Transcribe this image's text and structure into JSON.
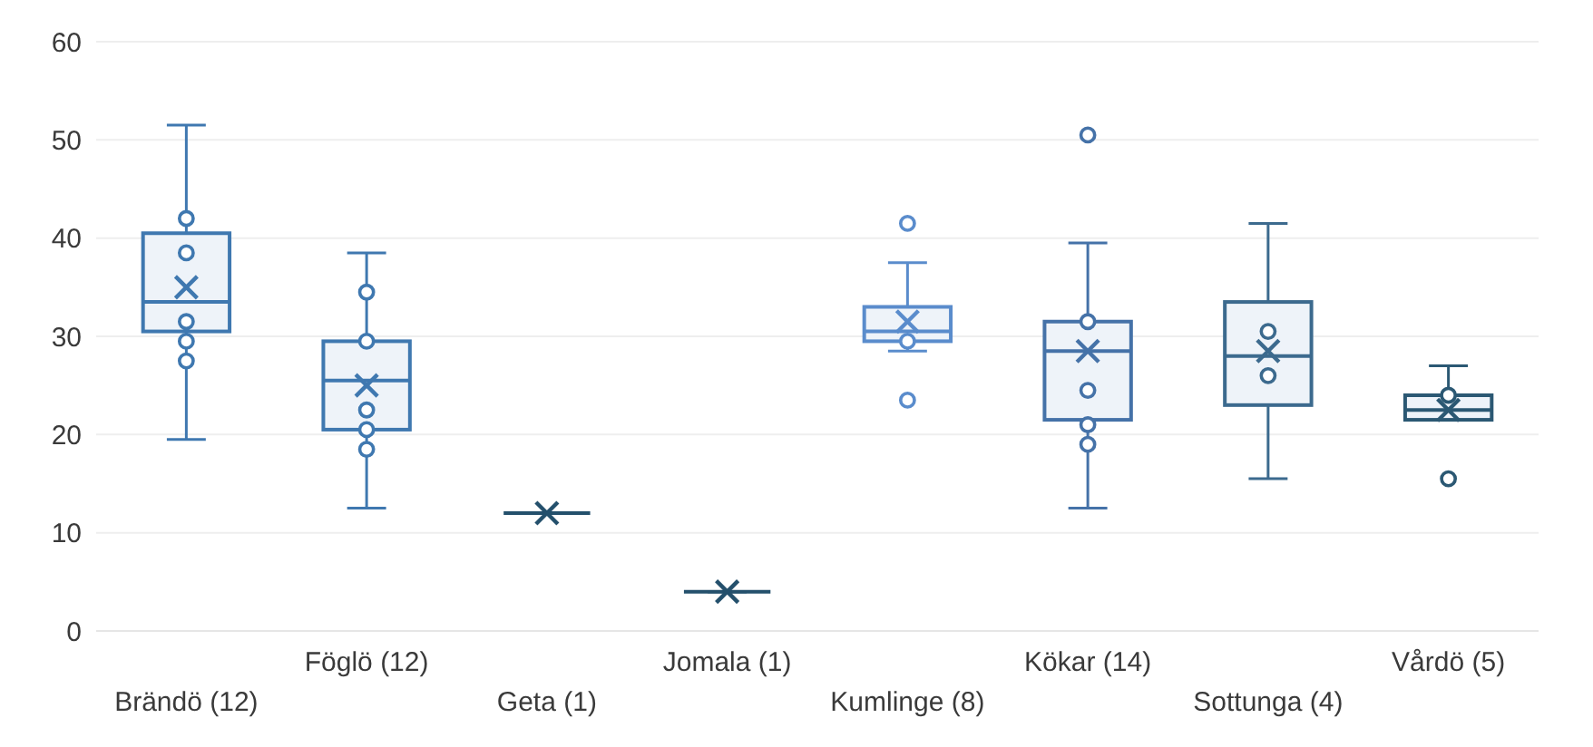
{
  "chart_data": {
    "type": "box",
    "categories": [
      "Brändö (12)",
      "Föglö (12)",
      "Geta (1)",
      "Jomala (1)",
      "Kumlinge (8)",
      "Kökar (14)",
      "Sottunga (4)",
      "Vårdö (5)"
    ],
    "boxes": [
      {
        "low": 19.5,
        "q1": 30.5,
        "median": 33.5,
        "q3": 40.5,
        "high": 51.5,
        "mean": 35
      },
      {
        "low": 12.5,
        "q1": 20.5,
        "median": 25.5,
        "q3": 29.5,
        "high": 38.5,
        "mean": 25
      },
      {
        "low": 12,
        "q1": 12,
        "median": 12,
        "q3": 12,
        "high": 12,
        "mean": 12
      },
      {
        "low": 4,
        "q1": 4,
        "median": 4,
        "q3": 4,
        "high": 4,
        "mean": 4
      },
      {
        "low": 28.5,
        "q1": 29.5,
        "median": 30.5,
        "q3": 33,
        "high": 37.5,
        "mean": 31.5,
        "outliers": [
          41.5,
          23.5
        ]
      },
      {
        "low": 12.5,
        "q1": 21.5,
        "median": 28.5,
        "q3": 31.5,
        "high": 39.5,
        "mean": 28.5,
        "outliers": [
          50.5
        ]
      },
      {
        "low": 15.5,
        "q1": 23,
        "median": 28,
        "q3": 33.5,
        "high": 41.5,
        "mean": 28.5
      },
      {
        "low": 21.5,
        "q1": 21.5,
        "median": 22.5,
        "q3": 24,
        "high": 27,
        "mean": 22.5,
        "outliers": [
          15.5
        ]
      }
    ],
    "colors": [
      "#3f78b0",
      "#3f78b0",
      "#24506c",
      "#24506c",
      "#5a8ccc",
      "#4572a8",
      "#3c6a8e",
      "#2b5873"
    ],
    "series": [
      {
        "type": "scatter",
        "x": [
          "Brändö (12)",
          "Brändö (12)",
          "Brändö (12)",
          "Brändö (12)",
          "Brändö (12)",
          "Föglö (12)",
          "Föglö (12)",
          "Föglö (12)",
          "Föglö (12)",
          "Föglö (12)",
          "Kumlinge (8)",
          "Kökar (14)",
          "Kökar (14)",
          "Kökar (14)",
          "Kökar (14)",
          "Sottunga (4)",
          "Sottunga (4)",
          "Vårdö (5)"
        ],
        "values": [
          42,
          38.5,
          31.5,
          29.5,
          27.5,
          34.5,
          29.5,
          22.5,
          20.5,
          18.5,
          29.5,
          31.5,
          24.5,
          21,
          19,
          30.5,
          26,
          24
        ],
        "colors": [
          "#3f78b0",
          "#3f78b0",
          "#3f78b0",
          "#3f78b0",
          "#3f78b0",
          "#3f78b0",
          "#3f78b0",
          "#3f78b0",
          "#3f78b0",
          "#3f78b0",
          "#5a8ccc",
          "#4572a8",
          "#4572a8",
          "#4572a8",
          "#4572a8",
          "#3c6a8e",
          "#3c6a8e",
          "#2b5873"
        ]
      }
    ],
    "ylim": [
      0,
      60
    ],
    "yticks": [
      0,
      10,
      20,
      30,
      40,
      50,
      60
    ],
    "grid": "y",
    "marker": "circle"
  }
}
